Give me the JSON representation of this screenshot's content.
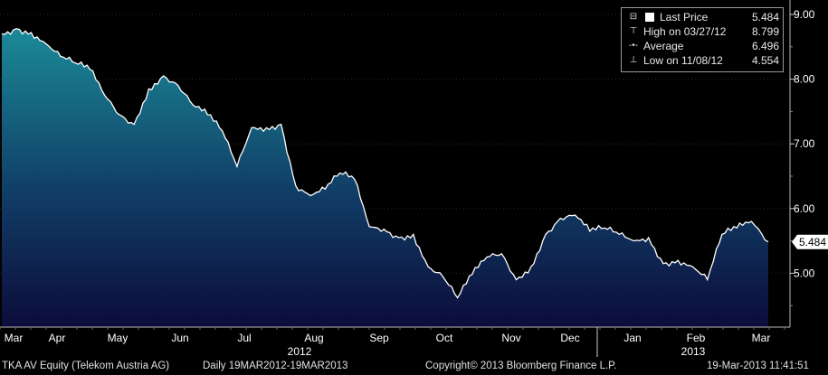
{
  "chart_data": {
    "type": "area",
    "ylim": [
      4.4,
      9.0
    ],
    "y_ticks": [
      "5.00",
      "6.00",
      "7.00",
      "8.00",
      "9.00"
    ],
    "y_tick_values": [
      5,
      6,
      7,
      8,
      9
    ],
    "x_tick_labels": [
      "Mar",
      "Apr",
      "May",
      "Jun",
      "Jul",
      "Aug",
      "Sep",
      "Oct",
      "Nov",
      "Dec",
      "Jan",
      "Feb",
      "Mar"
    ],
    "year_labels": [
      "2012",
      "2013"
    ],
    "last_value_label": "5.484",
    "series": [
      {
        "type": "area",
        "x": [
          "2012-03-19",
          "2012-03-26",
          "2012-04-02",
          "2012-04-09",
          "2012-04-16",
          "2012-04-23",
          "2012-04-30",
          "2012-05-07",
          "2012-05-14",
          "2012-05-21",
          "2012-05-28",
          "2012-06-04",
          "2012-06-11",
          "2012-06-18",
          "2012-06-25",
          "2012-07-02",
          "2012-07-09",
          "2012-07-16",
          "2012-07-23",
          "2012-07-30",
          "2012-08-06",
          "2012-08-13",
          "2012-08-20",
          "2012-08-27",
          "2012-09-03",
          "2012-09-10",
          "2012-09-17",
          "2012-09-24",
          "2012-10-01",
          "2012-10-08",
          "2012-10-15",
          "2012-10-22",
          "2012-10-29",
          "2012-11-05",
          "2012-11-12",
          "2012-11-19",
          "2012-11-26",
          "2012-12-03",
          "2012-12-10",
          "2012-12-17",
          "2012-12-24",
          "2012-12-31",
          "2013-01-07",
          "2013-01-14",
          "2013-01-21",
          "2013-01-28",
          "2013-02-04",
          "2013-02-11",
          "2013-02-18",
          "2013-02-25",
          "2013-03-04",
          "2013-03-11",
          "2013-03-19"
        ],
        "values": [
          8.7,
          8.78,
          8.72,
          8.55,
          8.35,
          8.25,
          8.15,
          7.75,
          7.45,
          7.3,
          7.85,
          8.05,
          7.9,
          7.6,
          7.45,
          7.2,
          6.65,
          7.25,
          7.25,
          7.3,
          6.35,
          6.2,
          6.3,
          6.55,
          6.45,
          5.72,
          5.68,
          5.55,
          5.6,
          5.1,
          4.95,
          4.62,
          4.98,
          5.25,
          5.3,
          4.9,
          5.1,
          5.6,
          5.85,
          5.9,
          5.65,
          5.7,
          5.6,
          5.5,
          5.55,
          5.15,
          5.2,
          5.1,
          4.9,
          5.6,
          5.7,
          5.8,
          5.484
        ]
      }
    ]
  },
  "legend": {
    "items": [
      {
        "label": "Last Price",
        "value": "5.484"
      },
      {
        "label": "High on 03/27/12",
        "value": "8.799"
      },
      {
        "label": "Average",
        "value": "6.496"
      },
      {
        "label": "Low on 11/08/12",
        "value": "4.554"
      }
    ]
  },
  "footer": {
    "security": "TKA AV Equity (Telekom Austria AG)",
    "range": "Daily 19MAR2012-19MAR2013",
    "copyright": "Copyright© 2013 Bloomberg Finance L.P.",
    "timestamp": "19-Mar-2013 11:41:51"
  },
  "colors": {
    "area_top": "#1b8a98",
    "area_bottom": "#0c0c3a",
    "line": "#ffffff",
    "background": "#000000"
  }
}
